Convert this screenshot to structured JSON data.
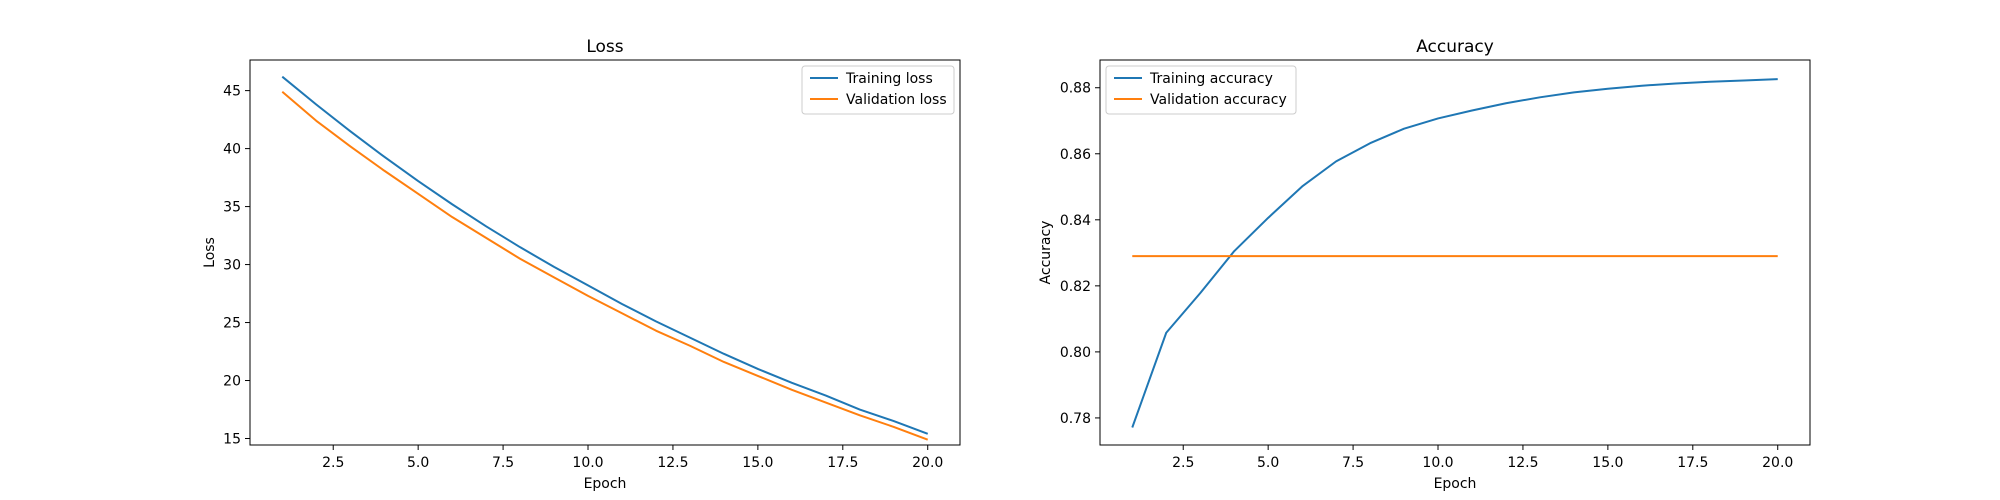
{
  "colors": {
    "series_1": "#1f77b4",
    "series_2": "#ff7f0e",
    "background": "#ffffff",
    "axes": "#000000"
  },
  "chart_data": [
    {
      "type": "line",
      "title": "Loss",
      "xlabel": "Epoch",
      "ylabel": "Loss",
      "xlim": [
        0.05,
        20.95
      ],
      "ylim": [
        14.44,
        47.64
      ],
      "xticks": [
        2.5,
        5.0,
        7.5,
        10.0,
        12.5,
        15.0,
        17.5,
        20.0
      ],
      "xtick_labels": [
        "2.5",
        "5.0",
        "7.5",
        "10.0",
        "12.5",
        "15.0",
        "17.5",
        "20.0"
      ],
      "yticks": [
        15,
        20,
        25,
        30,
        35,
        40,
        45
      ],
      "ytick_labels": [
        "15",
        "20",
        "25",
        "30",
        "35",
        "40",
        "45"
      ],
      "grid": false,
      "legend_position": "top-right",
      "x": [
        1,
        2,
        3,
        4,
        5,
        6,
        7,
        8,
        9,
        10,
        11,
        12,
        13,
        14,
        15,
        16,
        17,
        18,
        19,
        20
      ],
      "series": [
        {
          "name": "Training loss",
          "color": "#1f77b4",
          "values": [
            46.2,
            43.8,
            41.5,
            39.3,
            37.2,
            35.2,
            33.3,
            31.5,
            29.8,
            28.2,
            26.6,
            25.1,
            23.7,
            22.3,
            21.0,
            19.8,
            18.7,
            17.5,
            16.5,
            15.4
          ]
        },
        {
          "name": "Validation loss",
          "color": "#ff7f0e",
          "values": [
            44.9,
            42.4,
            40.2,
            38.1,
            36.1,
            34.1,
            32.3,
            30.5,
            28.9,
            27.3,
            25.8,
            24.3,
            23.0,
            21.6,
            20.4,
            19.2,
            18.1,
            17.0,
            16.0,
            14.9
          ]
        }
      ]
    },
    {
      "type": "line",
      "title": "Accuracy",
      "xlabel": "Epoch",
      "ylabel": "Accuracy",
      "xlim": [
        0.05,
        20.95
      ],
      "ylim": [
        0.7718,
        0.8884
      ],
      "xticks": [
        2.5,
        5.0,
        7.5,
        10.0,
        12.5,
        15.0,
        17.5,
        20.0
      ],
      "xtick_labels": [
        "2.5",
        "5.0",
        "7.5",
        "10.0",
        "12.5",
        "15.0",
        "17.5",
        "20.0"
      ],
      "yticks": [
        0.78,
        0.8,
        0.82,
        0.84,
        0.86,
        0.88
      ],
      "ytick_labels": [
        "0.78",
        "0.80",
        "0.82",
        "0.84",
        "0.86",
        "0.88"
      ],
      "grid": false,
      "legend_position": "top-left",
      "x": [
        1,
        2,
        3,
        4,
        5,
        6,
        7,
        8,
        9,
        10,
        11,
        12,
        13,
        14,
        15,
        16,
        17,
        18,
        19,
        20
      ],
      "series": [
        {
          "name": "Training accuracy",
          "color": "#1f77b4",
          "values": [
            0.7771,
            0.8058,
            0.8178,
            0.8305,
            0.8406,
            0.8501,
            0.8577,
            0.8632,
            0.8676,
            0.8707,
            0.8731,
            0.8753,
            0.8771,
            0.8786,
            0.8797,
            0.8806,
            0.8813,
            0.8818,
            0.8822,
            0.8826
          ]
        },
        {
          "name": "Validation accuracy",
          "color": "#ff7f0e",
          "values": [
            0.829,
            0.829,
            0.829,
            0.829,
            0.829,
            0.829,
            0.829,
            0.829,
            0.829,
            0.829,
            0.829,
            0.829,
            0.829,
            0.829,
            0.829,
            0.829,
            0.829,
            0.829,
            0.829,
            0.829
          ]
        }
      ]
    }
  ]
}
